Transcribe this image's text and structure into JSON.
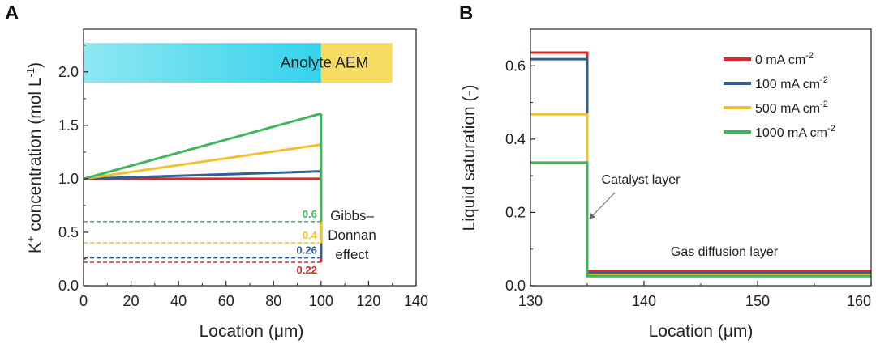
{
  "panels": {
    "a_label": "A",
    "b_label": "B"
  },
  "chart_data": [
    {
      "type": "line",
      "panel": "A",
      "xlabel": "Location (μm)",
      "ylabel_prefix": "K",
      "ylabel_sup": "+",
      "ylabel_mid": " concentration (mol L",
      "ylabel_sup2": "-1",
      "ylabel_suffix": ")",
      "xlim": [
        0,
        140
      ],
      "ylim": [
        0,
        2.4
      ],
      "xticks": [
        0,
        20,
        40,
        60,
        80,
        100,
        120,
        140
      ],
      "yticks": [
        0.0,
        0.5,
        1.0,
        1.5,
        2.0
      ],
      "ytick_labels": [
        "0.0",
        "0.5",
        "1.0",
        "1.5",
        "2.0"
      ],
      "regions": [
        {
          "name": "Anolyte",
          "x": [
            0,
            100
          ],
          "y": [
            1.9,
            2.27
          ],
          "color_from": "#8ee8f2",
          "color_to": "#36d2ec"
        },
        {
          "name": "AEM",
          "x": [
            100,
            130
          ],
          "y": [
            1.9,
            2.27
          ],
          "color": "#f7dc63"
        }
      ],
      "series": [
        {
          "name": "0 mA cm-2",
          "color": "#e0262a",
          "x": [
            0,
            100
          ],
          "y": [
            1.0,
            1.0
          ],
          "drop_to": 0.22,
          "donnan_label": "0.22"
        },
        {
          "name": "100 mA cm-2",
          "color": "#2e5f95",
          "x": [
            0,
            100
          ],
          "y": [
            1.0,
            1.07
          ],
          "drop_to": 0.26,
          "donnan_label": "0.26"
        },
        {
          "name": "500 mA cm-2",
          "color": "#f4bf2c",
          "x": [
            0,
            100
          ],
          "y": [
            1.0,
            1.32
          ],
          "drop_to": 0.4,
          "donnan_label": "0.4"
        },
        {
          "name": "1000 mA cm-2",
          "color": "#3fb55e",
          "x": [
            0,
            100
          ],
          "y": [
            1.0,
            1.61
          ],
          "drop_to": 0.6,
          "donnan_label": "0.6"
        }
      ],
      "annotation": {
        "lines": [
          "Gibbs–",
          "Donnan",
          "effect"
        ]
      }
    },
    {
      "type": "line",
      "panel": "B",
      "xlabel": "Location (μm)",
      "ylabel": "Liquid saturation (-)",
      "xlim": [
        130,
        160
      ],
      "ylim": [
        0,
        0.7
      ],
      "xticks": [
        130,
        140,
        150,
        160
      ],
      "yticks": [
        0.0,
        0.2,
        0.4,
        0.6
      ],
      "ytick_labels": [
        "0.0",
        "0.2",
        "0.4",
        "0.6"
      ],
      "series": [
        {
          "name": "0 mA cm",
          "sup": "-2",
          "color": "#e0262a",
          "x": [
            130,
            135,
            135,
            160
          ],
          "y": [
            0.636,
            0.636,
            0.04,
            0.04
          ]
        },
        {
          "name": "100 mA cm",
          "sup": "-2",
          "color": "#2e5f95",
          "x": [
            130,
            135,
            135,
            160
          ],
          "y": [
            0.618,
            0.618,
            0.035,
            0.035
          ]
        },
        {
          "name": "500 mA cm",
          "sup": "-2",
          "color": "#f4bf2c",
          "x": [
            130,
            135,
            135,
            160
          ],
          "y": [
            0.468,
            0.468,
            0.03,
            0.03
          ]
        },
        {
          "name": "1000 mA cm",
          "sup": "-2",
          "color": "#3fb55e",
          "x": [
            130,
            135,
            135,
            160
          ],
          "y": [
            0.336,
            0.336,
            0.026,
            0.026
          ]
        }
      ],
      "annotations": {
        "catalyst": "Catalyst layer",
        "gdl": "Gas diffusion layer"
      },
      "legend_position": "top-right"
    }
  ]
}
